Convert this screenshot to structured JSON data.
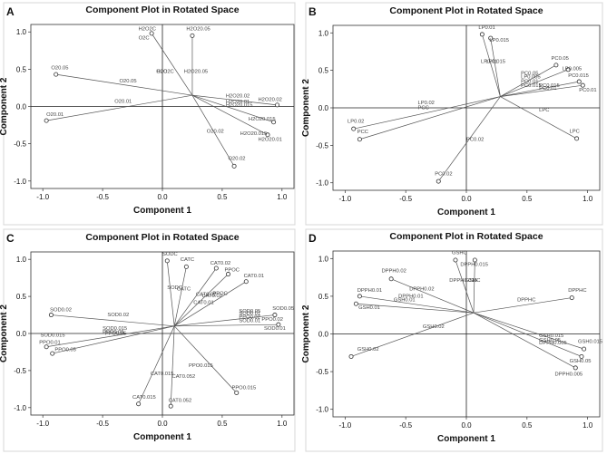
{
  "figure": {
    "panels": [
      "A",
      "B",
      "C",
      "D"
    ]
  },
  "chart_data": [
    {
      "panel": "A",
      "type": "scatter",
      "title": "Component Plot in Rotated Space",
      "xlabel": "Component 1",
      "ylabel": "Component 2",
      "xlim": [
        -1.0,
        1.0
      ],
      "ylim": [
        -1.0,
        1.0
      ],
      "xticks": [
        "-1.0",
        "-0.5",
        "0.0",
        "0.5",
        "1.0"
      ],
      "yticks": [
        "1.0",
        "0.5",
        "0.0",
        "-0.5",
        "-1.0"
      ],
      "grid": false,
      "origin": [
        0.25,
        0.15
      ],
      "points": [
        {
          "label": "H2O2C",
          "x": -0.09,
          "y": 0.98
        },
        {
          "label": "H2O20.05",
          "x": 0.25,
          "y": 0.95
        },
        {
          "label": "O20.05",
          "x": -0.89,
          "y": 0.43
        },
        {
          "label": "H2O20.02",
          "x": 0.96,
          "y": 0.02
        },
        {
          "label": "H2O20.015",
          "x": 0.93,
          "y": -0.21
        },
        {
          "label": "H2O20.01",
          "x": 0.88,
          "y": -0.38
        },
        {
          "label": "O20.01",
          "x": -0.97,
          "y": -0.19
        },
        {
          "label": "O20.02",
          "x": 0.6,
          "y": -0.8
        }
      ],
      "annotations": [
        {
          "text": "H2O2C",
          "x": -0.2,
          "y": 1.02
        },
        {
          "text": "O2C",
          "x": -0.2,
          "y": 0.9
        },
        {
          "text": "H2O20.05",
          "x": 0.2,
          "y": 1.02
        },
        {
          "text": "H2O2C",
          "x": -0.05,
          "y": 0.45
        },
        {
          "text": "O2C",
          "x": -0.05,
          "y": 0.45
        },
        {
          "text": "H2O20.05",
          "x": 0.18,
          "y": 0.45
        },
        {
          "text": "O20.05",
          "x": -0.93,
          "y": 0.5
        },
        {
          "text": "O20.05",
          "x": -0.36,
          "y": 0.32
        },
        {
          "text": "H2O20.02",
          "x": 0.53,
          "y": 0.12
        },
        {
          "text": "H2O20.02",
          "x": 0.8,
          "y": 0.07
        },
        {
          "text": "H2O20.01",
          "x": 0.53,
          "y": 0.04
        },
        {
          "text": "H2O20.015",
          "x": 0.53,
          "y": 0.0
        },
        {
          "text": "H2O20.015",
          "x": 0.72,
          "y": -0.19
        },
        {
          "text": "H2O20.015",
          "x": 0.65,
          "y": -0.38
        },
        {
          "text": "H2O20.01",
          "x": 0.8,
          "y": -0.46
        },
        {
          "text": "O20.01",
          "x": -0.4,
          "y": 0.05
        },
        {
          "text": "O20.01",
          "x": -0.97,
          "y": -0.13
        },
        {
          "text": "O20.02",
          "x": 0.37,
          "y": -0.35
        },
        {
          "text": "O20.02",
          "x": 0.55,
          "y": -0.72
        }
      ]
    },
    {
      "panel": "B",
      "type": "scatter",
      "title": "Component Plot in Rotated Space",
      "xlabel": "Component 1",
      "ylabel": "Component 2",
      "xlim": [
        -1.0,
        1.0
      ],
      "ylim": [
        -1.0,
        1.0
      ],
      "xticks": [
        "-1.0",
        "-0.5",
        "0.0",
        "0.5",
        "1.0"
      ],
      "yticks": [
        "1.0",
        "0.5",
        "0.0",
        "-0.5",
        "-1.0"
      ],
      "grid": false,
      "origin": [
        0.28,
        0.15
      ],
      "points": [
        {
          "label": "LP0.01",
          "x": 0.13,
          "y": 0.98
        },
        {
          "label": "LP0.015",
          "x": 0.2,
          "y": 0.93
        },
        {
          "label": "PC0.05",
          "x": 0.74,
          "y": 0.57
        },
        {
          "label": "LP0.005",
          "x": 0.84,
          "y": 0.51
        },
        {
          "label": "PC0.015",
          "x": 0.93,
          "y": 0.35
        },
        {
          "label": "PC0.01",
          "x": 0.96,
          "y": 0.3
        },
        {
          "label": "LP0.02",
          "x": -0.93,
          "y": -0.28
        },
        {
          "label": "PCC",
          "x": -0.88,
          "y": -0.42
        },
        {
          "label": "PC0.02",
          "x": -0.23,
          "y": -0.98
        },
        {
          "label": "LPC",
          "x": 0.91,
          "y": -0.41
        }
      ],
      "annotations": [
        {
          "text": "LP0.01",
          "x": 0.1,
          "y": 1.05
        },
        {
          "text": "LP0.015",
          "x": 0.19,
          "y": 0.88
        },
        {
          "text": "LP0.01",
          "x": 0.12,
          "y": 0.6
        },
        {
          "text": "LP0.015",
          "x": 0.16,
          "y": 0.6
        },
        {
          "text": "PC0.05",
          "x": 0.7,
          "y": 0.64
        },
        {
          "text": "LP0.005",
          "x": 0.79,
          "y": 0.5
        },
        {
          "text": "PC0.015",
          "x": 0.84,
          "y": 0.41
        },
        {
          "text": "PC0.01",
          "x": 0.93,
          "y": 0.22
        },
        {
          "text": "PC0.05",
          "x": 0.45,
          "y": 0.44
        },
        {
          "text": "LP0.005",
          "x": 0.45,
          "y": 0.39
        },
        {
          "text": "PC0.01",
          "x": 0.45,
          "y": 0.33
        },
        {
          "text": "PC0.015",
          "x": 0.45,
          "y": 0.28
        },
        {
          "text": "PC0.015",
          "x": 0.6,
          "y": 0.28
        },
        {
          "text": "PC0.01",
          "x": 0.6,
          "y": 0.24
        },
        {
          "text": "LP0.02",
          "x": -0.4,
          "y": 0.05
        },
        {
          "text": "PCC",
          "x": -0.4,
          "y": -0.02
        },
        {
          "text": "LP0.02",
          "x": -0.98,
          "y": -0.2
        },
        {
          "text": "PCC",
          "x": -0.9,
          "y": -0.34
        },
        {
          "text": "PC0.02",
          "x": 0.0,
          "y": -0.44
        },
        {
          "text": "PC0.02",
          "x": -0.26,
          "y": -0.9
        },
        {
          "text": "LPC",
          "x": 0.6,
          "y": -0.05
        },
        {
          "text": "LPC",
          "x": 0.85,
          "y": -0.33
        }
      ]
    },
    {
      "panel": "C",
      "type": "scatter",
      "title": "Component Plot in Rotated Space",
      "xlabel": "Component 1",
      "ylabel": "Component 2",
      "xlim": [
        -1.0,
        1.0
      ],
      "ylim": [
        -1.0,
        1.0
      ],
      "xticks": [
        "-1.0",
        "-0.5",
        "0.0",
        "0.5",
        "1.0"
      ],
      "yticks": [
        "1.0",
        "0.5",
        "0.0",
        "-0.5",
        "-1.0"
      ],
      "grid": false,
      "origin": [
        0.1,
        0.1
      ],
      "points": [
        {
          "label": "SODC",
          "x": 0.04,
          "y": 0.98
        },
        {
          "label": "CATC",
          "x": 0.2,
          "y": 0.9
        },
        {
          "label": "CAT0.02",
          "x": 0.45,
          "y": 0.88
        },
        {
          "label": "PPOC",
          "x": 0.55,
          "y": 0.8
        },
        {
          "label": "CAT0.01",
          "x": 0.7,
          "y": 0.7
        },
        {
          "label": "SOD0.02",
          "x": -0.93,
          "y": 0.25
        },
        {
          "label": "SOD0.05",
          "x": 0.94,
          "y": 0.25
        },
        {
          "label": "PPO0.02",
          "x": 0.97,
          "y": 0.12
        },
        {
          "label": "PPO0.01",
          "x": -0.97,
          "y": -0.18
        },
        {
          "label": "PPO0.05",
          "x": -0.92,
          "y": -0.27
        },
        {
          "label": "PPO0.015",
          "x": 0.62,
          "y": -0.8
        },
        {
          "label": "CAT0.015",
          "x": -0.2,
          "y": -0.95
        },
        {
          "label": "CAT0.052",
          "x": 0.07,
          "y": -0.98
        }
      ],
      "annotations": [
        {
          "text": "SODC",
          "x": 0.0,
          "y": 1.05
        },
        {
          "text": "CATC",
          "x": 0.15,
          "y": 0.98
        },
        {
          "text": "CAT0.02",
          "x": 0.4,
          "y": 0.93
        },
        {
          "text": "PPOC",
          "x": 0.52,
          "y": 0.84
        },
        {
          "text": "CAT0.01",
          "x": 0.68,
          "y": 0.76
        },
        {
          "text": "SODC",
          "x": 0.04,
          "y": 0.6
        },
        {
          "text": "CATC",
          "x": 0.12,
          "y": 0.58
        },
        {
          "text": "CAT0.02",
          "x": 0.28,
          "y": 0.51
        },
        {
          "text": "CAT0.02",
          "x": 0.33,
          "y": 0.49
        },
        {
          "text": "PPOC",
          "x": 0.42,
          "y": 0.52
        },
        {
          "text": "CAT0.01",
          "x": 0.26,
          "y": 0.4
        },
        {
          "text": "SOD0.02",
          "x": -0.94,
          "y": 0.3
        },
        {
          "text": "SOD0.02",
          "x": -0.46,
          "y": 0.23
        },
        {
          "text": "SOD0.05",
          "x": 0.92,
          "y": 0.32
        },
        {
          "text": "SOD0.05",
          "x": 0.64,
          "y": 0.28
        },
        {
          "text": "SOD0.01",
          "x": 0.64,
          "y": 0.25
        },
        {
          "text": "PPO0.02",
          "x": 0.64,
          "y": 0.2
        },
        {
          "text": "SOD0.01",
          "x": 0.64,
          "y": 0.15
        },
        {
          "text": "PPO0.02",
          "x": 0.83,
          "y": 0.17
        },
        {
          "text": "SOD0.01",
          "x": 0.85,
          "y": 0.05
        },
        {
          "text": "SOD0.015",
          "x": -0.5,
          "y": 0.05
        },
        {
          "text": "PPO0.05",
          "x": -0.5,
          "y": 0.0
        },
        {
          "text": "PPO0.05",
          "x": -0.48,
          "y": -0.02
        },
        {
          "text": "SOD0.015",
          "x": -1.02,
          "y": -0.04
        },
        {
          "text": "PPO0.01",
          "x": -1.03,
          "y": -0.14
        },
        {
          "text": "PPO0.05",
          "x": -0.9,
          "y": -0.24
        },
        {
          "text": "PPO0.015",
          "x": 0.22,
          "y": -0.45
        },
        {
          "text": "PPO0.015",
          "x": 0.58,
          "y": -0.75
        },
        {
          "text": "CAT0.015",
          "x": -0.1,
          "y": -0.56
        },
        {
          "text": "CAT0.052",
          "x": 0.08,
          "y": -0.6
        },
        {
          "text": "CAT0.015",
          "x": -0.25,
          "y": -0.88
        },
        {
          "text": "CAT0.052",
          "x": 0.05,
          "y": -0.92
        }
      ]
    },
    {
      "panel": "D",
      "type": "scatter",
      "title": "Component Plot in Rotated Space",
      "xlabel": "Component 1",
      "ylabel": "Component 2",
      "xlim": [
        -1.0,
        1.0
      ],
      "ylim": [
        -1.0,
        1.0
      ],
      "xticks": [
        "-1.0",
        "-0.5",
        "0.0",
        "0.5",
        "1.0"
      ],
      "yticks": [
        "1.0",
        "0.5",
        "0.0",
        "-0.5",
        "-1.0"
      ],
      "grid": false,
      "origin": [
        0.06,
        0.28
      ],
      "points": [
        {
          "label": "GSHC",
          "x": -0.09,
          "y": 0.98
        },
        {
          "label": "DPPHC",
          "x": 0.07,
          "y": 0.98
        },
        {
          "label": "DPPH0.02",
          "x": -0.62,
          "y": 0.73
        },
        {
          "label": "DPPH0.01",
          "x": -0.88,
          "y": 0.5
        },
        {
          "label": "GSH0.01",
          "x": -0.91,
          "y": 0.4
        },
        {
          "label": "DPPHC",
          "x": 0.87,
          "y": 0.48
        },
        {
          "label": "GSH0.015",
          "x": 0.97,
          "y": -0.2
        },
        {
          "label": "GSH0.05",
          "x": 0.95,
          "y": -0.3
        },
        {
          "label": "DPPH0.005",
          "x": 0.9,
          "y": -0.45
        },
        {
          "label": "GSH0.02",
          "x": -0.95,
          "y": -0.3
        }
      ],
      "annotations": [
        {
          "text": "GSHC",
          "x": -0.12,
          "y": 1.06
        },
        {
          "text": "DPPH0.015",
          "x": -0.05,
          "y": 0.9
        },
        {
          "text": "DPPH0.02",
          "x": -0.7,
          "y": 0.82
        },
        {
          "text": "GSHC",
          "x": -0.01,
          "y": 0.69
        },
        {
          "text": "DPPH0.02",
          "x": -0.47,
          "y": 0.58
        },
        {
          "text": "DPPH0.01",
          "x": -0.9,
          "y": 0.56
        },
        {
          "text": "DPPH0.015",
          "x": -0.14,
          "y": 0.69
        },
        {
          "text": "DPPH0.01",
          "x": -0.56,
          "y": 0.48
        },
        {
          "text": "GSH0.01",
          "x": -0.6,
          "y": 0.43
        },
        {
          "text": "GSH0.01",
          "x": -0.89,
          "y": 0.33
        },
        {
          "text": "DPPHC",
          "x": 0.84,
          "y": 0.56
        },
        {
          "text": "DPPHC",
          "x": 0.42,
          "y": 0.43
        },
        {
          "text": "GSH0.02",
          "x": -0.36,
          "y": 0.08
        },
        {
          "text": "GSH0.015",
          "x": 0.6,
          "y": -0.04
        },
        {
          "text": "GSH0.05",
          "x": 0.6,
          "y": -0.1
        },
        {
          "text": "DPPH0.005",
          "x": 0.6,
          "y": -0.14
        },
        {
          "text": "GSH0.02",
          "x": -0.9,
          "y": -0.22
        },
        {
          "text": "GSH0.015",
          "x": 0.92,
          "y": -0.12
        },
        {
          "text": "GSH0.05",
          "x": 0.85,
          "y": -0.38
        },
        {
          "text": "DPPH0.005",
          "x": 0.73,
          "y": -0.55
        }
      ]
    }
  ]
}
